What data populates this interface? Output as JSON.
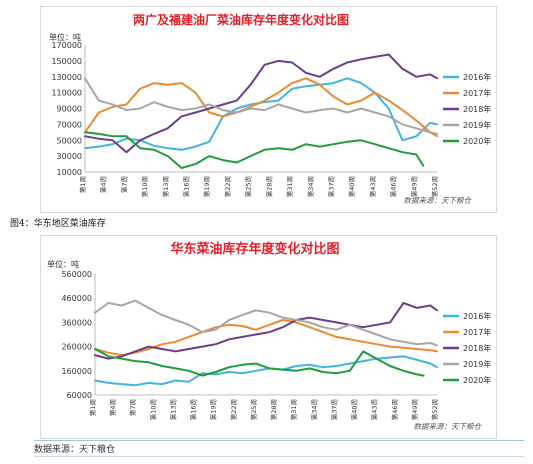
{
  "charts": [
    {
      "id": "east_china",
      "bind_key": "c0"
    }
  ],
  "figure_caption": "图4：华东地区菜油库存",
  "footer_source": "数据来源：天下粮仓",
  "colors": {
    "s2016": "#3fb5e3",
    "s2017": "#ef8a2c",
    "s2018": "#6b3f8e",
    "s2019": "#a6a6a6",
    "s2020": "#1f9e3a",
    "title": "#e3202a"
  },
  "chart_data": [
    {
      "type": "line",
      "title": "两广及福建油厂菜油库存年度变化对比图",
      "unit_label": "单位：吨",
      "source_label": "数据来源：天下粮仓",
      "ylim": [
        10000,
        170000
      ],
      "yticks": [
        10000,
        30000,
        50000,
        70000,
        90000,
        110000,
        130000,
        150000,
        170000
      ],
      "ytick_labels": [
        "10000",
        "30000",
        "50000",
        "70000",
        "90000",
        "110000",
        "130000",
        "150000",
        "170000"
      ],
      "x": [
        1,
        4,
        7,
        10,
        13,
        16,
        19,
        22,
        25,
        28,
        31,
        34,
        37,
        40,
        43,
        46,
        49,
        52
      ],
      "x_labels": [
        "第1周",
        "第4周",
        "第7周",
        "第10周",
        "第13周",
        "第16周",
        "第19周",
        "第22周",
        "第25周",
        "第28周",
        "第31周",
        "第34周",
        "第37周",
        "第40周",
        "第43周",
        "第46周",
        "第49周",
        "第52周"
      ],
      "grid": false,
      "legend_position": "right",
      "series": [
        {
          "name": "2016年",
          "color_key": "s2016",
          "x": [
            1,
            3,
            5,
            7,
            9,
            11,
            13,
            15,
            17,
            19,
            21,
            23,
            25,
            27,
            29,
            31,
            33,
            35,
            37,
            39,
            41,
            43,
            45,
            47,
            49,
            51,
            52
          ],
          "values": [
            40000,
            42000,
            45000,
            52000,
            50000,
            43000,
            40000,
            38000,
            42000,
            48000,
            80000,
            90000,
            95000,
            98000,
            100000,
            115000,
            118000,
            120000,
            122000,
            128000,
            122000,
            110000,
            90000,
            50000,
            55000,
            72000,
            70000
          ]
        },
        {
          "name": "2017年",
          "color_key": "s2017",
          "x": [
            1,
            3,
            5,
            7,
            9,
            11,
            13,
            15,
            17,
            19,
            21,
            23,
            25,
            27,
            29,
            31,
            33,
            35,
            37,
            39,
            41,
            43,
            45,
            47,
            49,
            51,
            52
          ],
          "values": [
            60000,
            85000,
            92000,
            95000,
            115000,
            122000,
            120000,
            122000,
            110000,
            85000,
            80000,
            85000,
            92000,
            100000,
            110000,
            122000,
            128000,
            120000,
            105000,
            95000,
            100000,
            110000,
            100000,
            88000,
            75000,
            60000,
            55000
          ]
        },
        {
          "name": "2018年",
          "color_key": "s2018",
          "x": [
            1,
            3,
            5,
            7,
            9,
            11,
            13,
            15,
            17,
            19,
            21,
            23,
            25,
            27,
            29,
            31,
            33,
            35,
            37,
            39,
            41,
            43,
            45,
            47,
            49,
            51,
            52
          ],
          "values": [
            55000,
            52000,
            50000,
            35000,
            50000,
            58000,
            65000,
            80000,
            85000,
            90000,
            95000,
            100000,
            120000,
            145000,
            150000,
            148000,
            135000,
            130000,
            140000,
            148000,
            152000,
            155000,
            158000,
            140000,
            130000,
            133000,
            128000
          ]
        },
        {
          "name": "2019年",
          "color_key": "s2019",
          "x": [
            1,
            3,
            5,
            7,
            9,
            11,
            13,
            15,
            17,
            19,
            21,
            23,
            25,
            27,
            29,
            31,
            33,
            35,
            37,
            39,
            41,
            43,
            45,
            47,
            49,
            51,
            52
          ],
          "values": [
            128000,
            100000,
            95000,
            88000,
            90000,
            98000,
            92000,
            88000,
            90000,
            95000,
            88000,
            85000,
            90000,
            88000,
            95000,
            90000,
            85000,
            88000,
            90000,
            85000,
            90000,
            85000,
            80000,
            70000,
            65000,
            60000,
            58000
          ]
        },
        {
          "name": "2020年",
          "color_key": "s2020",
          "x": [
            1,
            3,
            5,
            7,
            9,
            11,
            13,
            15,
            17,
            19,
            21,
            23,
            25,
            27,
            29,
            31,
            33,
            35,
            37,
            39,
            41,
            43,
            45,
            47,
            49,
            50
          ],
          "values": [
            60000,
            58000,
            55000,
            55000,
            40000,
            38000,
            30000,
            15000,
            20000,
            30000,
            25000,
            22000,
            30000,
            38000,
            40000,
            38000,
            45000,
            42000,
            45000,
            48000,
            50000,
            45000,
            40000,
            35000,
            32000,
            18000
          ]
        }
      ]
    },
    {
      "type": "line",
      "title": "华东菜油库存年度变化对比图",
      "unit_label": "单位：吨",
      "source_label": "数据来源：天下粮仓",
      "ylim": [
        60000,
        560000
      ],
      "yticks": [
        60000,
        160000,
        260000,
        360000,
        460000,
        560000
      ],
      "ytick_labels": [
        "60000",
        "160000",
        "260000",
        "360000",
        "460000",
        "560000"
      ],
      "x": [
        1,
        4,
        7,
        10,
        13,
        16,
        19,
        22,
        25,
        28,
        31,
        34,
        37,
        40,
        43,
        46,
        49,
        52
      ],
      "x_labels": [
        "第1周",
        "第4周",
        "第7周",
        "第10周",
        "第13周",
        "第16周",
        "第19周",
        "第22周",
        "第25周",
        "第28周",
        "第31周",
        "第34周",
        "第37周",
        "第40周",
        "第43周",
        "第46周",
        "第49周",
        "第52周"
      ],
      "grid": false,
      "legend_position": "right",
      "series": [
        {
          "name": "2016年",
          "color_key": "s2016",
          "x": [
            1,
            3,
            5,
            7,
            9,
            11,
            13,
            15,
            17,
            19,
            21,
            23,
            25,
            27,
            29,
            31,
            33,
            35,
            37,
            39,
            41,
            43,
            45,
            47,
            49,
            51,
            52
          ],
          "values": [
            120000,
            110000,
            105000,
            100000,
            110000,
            105000,
            120000,
            115000,
            150000,
            145000,
            155000,
            150000,
            160000,
            170000,
            165000,
            180000,
            185000,
            175000,
            180000,
            190000,
            200000,
            210000,
            215000,
            220000,
            205000,
            190000,
            175000
          ]
        },
        {
          "name": "2017年",
          "color_key": "s2017",
          "x": [
            1,
            3,
            5,
            7,
            9,
            11,
            13,
            15,
            17,
            19,
            21,
            23,
            25,
            27,
            29,
            31,
            33,
            35,
            37,
            39,
            41,
            43,
            45,
            47,
            49,
            51,
            52
          ],
          "values": [
            250000,
            235000,
            225000,
            235000,
            250000,
            270000,
            280000,
            300000,
            320000,
            340000,
            350000,
            345000,
            330000,
            350000,
            370000,
            360000,
            340000,
            320000,
            300000,
            290000,
            280000,
            270000,
            260000,
            255000,
            250000,
            245000,
            240000
          ]
        },
        {
          "name": "2018年",
          "color_key": "s2018",
          "x": [
            1,
            3,
            5,
            7,
            9,
            11,
            13,
            15,
            17,
            19,
            21,
            23,
            25,
            27,
            29,
            31,
            33,
            35,
            37,
            39,
            41,
            43,
            45,
            47,
            49,
            51,
            52
          ],
          "values": [
            225000,
            210000,
            220000,
            240000,
            260000,
            250000,
            240000,
            250000,
            260000,
            270000,
            290000,
            300000,
            310000,
            320000,
            340000,
            370000,
            380000,
            370000,
            360000,
            350000,
            340000,
            350000,
            360000,
            440000,
            420000,
            430000,
            410000
          ]
        },
        {
          "name": "2019年",
          "color_key": "s2019",
          "x": [
            1,
            3,
            5,
            7,
            9,
            11,
            13,
            15,
            17,
            19,
            21,
            23,
            25,
            27,
            29,
            31,
            33,
            35,
            37,
            39,
            41,
            43,
            45,
            47,
            49,
            51,
            52
          ],
          "values": [
            400000,
            440000,
            430000,
            450000,
            420000,
            390000,
            370000,
            350000,
            320000,
            330000,
            370000,
            390000,
            410000,
            400000,
            380000,
            370000,
            360000,
            340000,
            330000,
            350000,
            330000,
            310000,
            290000,
            280000,
            270000,
            275000,
            265000
          ]
        },
        {
          "name": "2020年",
          "color_key": "s2020",
          "x": [
            1,
            3,
            5,
            7,
            9,
            11,
            13,
            15,
            17,
            19,
            21,
            23,
            25,
            27,
            29,
            31,
            33,
            35,
            37,
            39,
            41,
            43,
            45,
            47,
            49,
            50
          ],
          "values": [
            250000,
            220000,
            210000,
            200000,
            195000,
            180000,
            170000,
            160000,
            140000,
            155000,
            175000,
            185000,
            190000,
            170000,
            165000,
            160000,
            170000,
            155000,
            150000,
            160000,
            240000,
            210000,
            180000,
            160000,
            145000,
            140000
          ]
        }
      ]
    }
  ]
}
